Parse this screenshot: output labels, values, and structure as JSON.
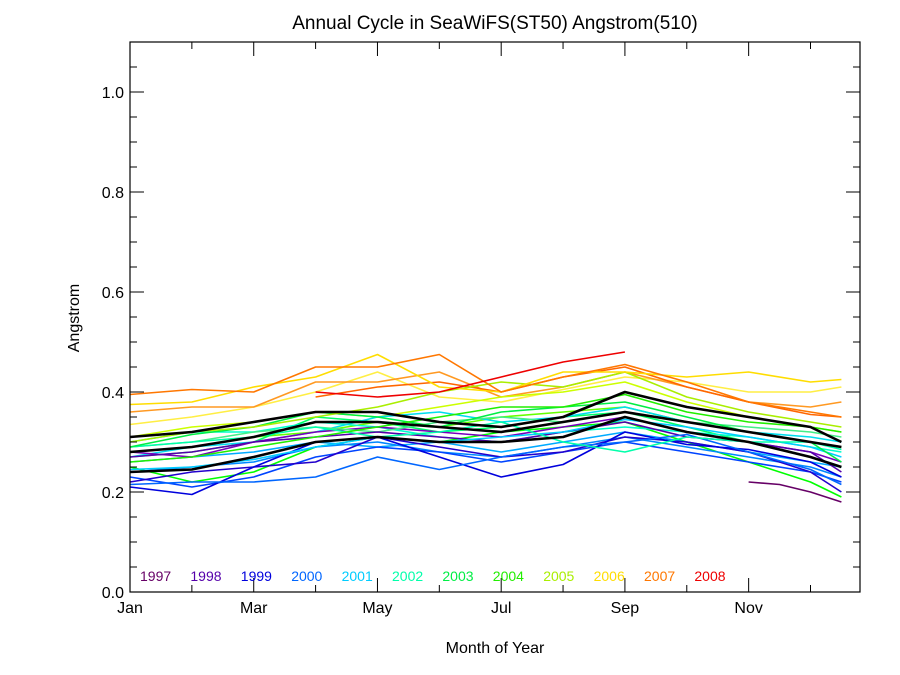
{
  "chart_data": {
    "type": "line",
    "title": "Annual Cycle in SeaWiFS(ST50) Angstrom(510)",
    "xlabel": "Month of Year",
    "ylabel": "Angstrom",
    "xlim": [
      1,
      12.8
    ],
    "ylim": [
      0.0,
      1.1
    ],
    "x_ticks": [
      {
        "value": 1,
        "label": "Jan"
      },
      {
        "value": 3,
        "label": "Mar"
      },
      {
        "value": 5,
        "label": "May"
      },
      {
        "value": 7,
        "label": "Jul"
      },
      {
        "value": 9,
        "label": "Sep"
      },
      {
        "value": 11,
        "label": "Nov"
      }
    ],
    "y_ticks": [
      {
        "value": 0.0,
        "label": "0.0"
      },
      {
        "value": 0.2,
        "label": "0.2"
      },
      {
        "value": 0.4,
        "label": "0.4"
      },
      {
        "value": 0.6,
        "label": "0.6"
      },
      {
        "value": 0.8,
        "label": "0.8"
      },
      {
        "value": 1.0,
        "label": "1.0"
      }
    ],
    "grid": false,
    "legend_position": "bottom-left",
    "series": [
      {
        "name": "1997",
        "color": "#660066",
        "x": [
          11,
          11.5,
          12,
          12.5
        ],
        "values": [
          0.22,
          0.215,
          0.2,
          0.18
        ]
      },
      {
        "name": "1998",
        "color": "#5500aa",
        "x": [
          1,
          2,
          3,
          4,
          5,
          6,
          7,
          8,
          9,
          10,
          11,
          12,
          12.5
        ],
        "values": [
          0.27,
          0.28,
          0.3,
          0.31,
          0.32,
          0.31,
          0.3,
          0.32,
          0.34,
          0.31,
          0.3,
          0.28,
          0.24
        ]
      },
      {
        "name": "1999",
        "color": "#0000dd",
        "x": [
          1,
          2,
          3,
          4,
          5,
          6,
          7,
          8,
          9,
          10,
          11,
          12,
          12.5
        ],
        "values": [
          0.21,
          0.195,
          0.25,
          0.3,
          0.31,
          0.27,
          0.23,
          0.255,
          0.32,
          0.295,
          0.285,
          0.26,
          0.23
        ]
      },
      {
        "name": "2000",
        "color": "#0066ff",
        "x": [
          1,
          2,
          3,
          4,
          5,
          6,
          7,
          8,
          9,
          10,
          11,
          12,
          12.5
        ],
        "values": [
          0.215,
          0.22,
          0.22,
          0.23,
          0.27,
          0.245,
          0.27,
          0.29,
          0.3,
          0.315,
          0.28,
          0.245,
          0.215
        ]
      },
      {
        "name": "2001",
        "color": "#00ccff",
        "x": [
          1,
          2,
          3,
          4,
          5,
          6,
          7,
          8,
          9,
          10,
          11,
          12,
          12.5
        ],
        "values": [
          0.245,
          0.25,
          0.265,
          0.29,
          0.31,
          0.3,
          0.31,
          0.32,
          0.345,
          0.33,
          0.31,
          0.29,
          0.27
        ]
      },
      {
        "name": "2002",
        "color": "#00ffaa",
        "x": [
          1,
          2,
          3,
          4,
          5,
          6,
          7,
          8,
          9,
          10,
          11,
          12,
          12.5
        ],
        "values": [
          0.29,
          0.3,
          0.31,
          0.33,
          0.31,
          0.32,
          0.34,
          0.3,
          0.28,
          0.31,
          0.3,
          0.3,
          0.285
        ]
      },
      {
        "name": "2003",
        "color": "#00ee44",
        "x": [
          1,
          2,
          3,
          4,
          5,
          6,
          7,
          8,
          9,
          10,
          11,
          12,
          12.5
        ],
        "values": [
          0.29,
          0.315,
          0.33,
          0.36,
          0.35,
          0.33,
          0.36,
          0.37,
          0.38,
          0.35,
          0.32,
          0.3,
          0.26
        ]
      },
      {
        "name": "2004",
        "color": "#22ee00",
        "x": [
          1,
          2,
          3,
          4,
          5,
          6,
          7,
          8,
          9,
          10,
          11,
          12,
          12.5
        ],
        "values": [
          0.26,
          0.27,
          0.29,
          0.31,
          0.33,
          0.35,
          0.37,
          0.37,
          0.395,
          0.36,
          0.34,
          0.33,
          0.32
        ]
      },
      {
        "name": "2005",
        "color": "#aaee00",
        "x": [
          1,
          2,
          3,
          4,
          5,
          6,
          7,
          8,
          9,
          10,
          11,
          12,
          12.5
        ],
        "values": [
          0.3,
          0.32,
          0.33,
          0.35,
          0.37,
          0.4,
          0.42,
          0.41,
          0.44,
          0.39,
          0.36,
          0.34,
          0.33
        ]
      },
      {
        "name": "2006",
        "color": "#ffdd00",
        "x": [
          1,
          2,
          3,
          4,
          5,
          6,
          7,
          8,
          9,
          10,
          11,
          12,
          12.5
        ],
        "values": [
          0.375,
          0.38,
          0.41,
          0.43,
          0.475,
          0.41,
          0.4,
          0.44,
          0.44,
          0.43,
          0.44,
          0.42,
          0.425
        ]
      },
      {
        "name": "2007",
        "color": "#ff7700",
        "x": [
          1,
          2,
          3,
          4,
          5,
          6,
          7,
          8,
          9,
          10,
          11,
          12,
          12.5
        ],
        "values": [
          0.395,
          0.405,
          0.4,
          0.45,
          0.45,
          0.475,
          0.4,
          0.43,
          0.455,
          0.42,
          0.38,
          0.36,
          0.35
        ]
      },
      {
        "name": "2008",
        "color": "#ee0000",
        "x": [
          4,
          5,
          6,
          7,
          8,
          9
        ],
        "values": [
          0.4,
          0.39,
          0.4,
          0.43,
          0.46,
          0.48
        ]
      }
    ],
    "extra_lines": [
      {
        "color": "#ffee44",
        "x": [
          1,
          2,
          3,
          4,
          5,
          6,
          7,
          8,
          9,
          10,
          11,
          12,
          12.5
        ],
        "values": [
          0.335,
          0.35,
          0.37,
          0.4,
          0.44,
          0.39,
          0.38,
          0.405,
          0.43,
          0.42,
          0.4,
          0.4,
          0.41
        ]
      },
      {
        "color": "#ff9922",
        "x": [
          1,
          2,
          3,
          4,
          5,
          6,
          7,
          8,
          9,
          10,
          11,
          12,
          12.5
        ],
        "values": [
          0.36,
          0.37,
          0.37,
          0.42,
          0.42,
          0.44,
          0.39,
          0.41,
          0.44,
          0.41,
          0.38,
          0.37,
          0.38
        ]
      },
      {
        "color": "#ff6600",
        "x": [
          4,
          5,
          6,
          7,
          8,
          9,
          10,
          11,
          12,
          12.5
        ],
        "values": [
          0.39,
          0.41,
          0.42,
          0.4,
          0.43,
          0.45,
          0.41,
          0.38,
          0.355,
          0.35
        ]
      },
      {
        "color": "#ccff00",
        "x": [
          1,
          2,
          3,
          4,
          5,
          6,
          7,
          8,
          9,
          10,
          11,
          12,
          12.5
        ],
        "values": [
          0.31,
          0.33,
          0.34,
          0.36,
          0.35,
          0.37,
          0.39,
          0.4,
          0.42,
          0.38,
          0.35,
          0.33,
          0.32
        ]
      },
      {
        "color": "#66ff00",
        "x": [
          1,
          2,
          3,
          4,
          5,
          6,
          7,
          8,
          9,
          10,
          11,
          12,
          12.5
        ],
        "values": [
          0.28,
          0.29,
          0.31,
          0.32,
          0.34,
          0.33,
          0.35,
          0.36,
          0.37,
          0.34,
          0.32,
          0.3,
          0.29
        ]
      },
      {
        "color": "#00ff66",
        "x": [
          1,
          2,
          3,
          4,
          5,
          6,
          7,
          8,
          9,
          10,
          11,
          12,
          12.5
        ],
        "values": [
          0.27,
          0.28,
          0.3,
          0.35,
          0.34,
          0.32,
          0.33,
          0.35,
          0.36,
          0.33,
          0.3,
          0.27,
          0.25
        ]
      },
      {
        "color": "#00ff00",
        "x": [
          1,
          2,
          3,
          4,
          5,
          6,
          7,
          8,
          9,
          10,
          11,
          12,
          12.5
        ],
        "values": [
          0.25,
          0.22,
          0.24,
          0.29,
          0.31,
          0.3,
          0.32,
          0.33,
          0.34,
          0.3,
          0.26,
          0.22,
          0.19
        ]
      },
      {
        "color": "#00ffcc",
        "x": [
          1,
          2,
          3,
          4,
          5,
          6,
          7,
          8,
          9,
          10,
          11,
          12,
          12.5
        ],
        "values": [
          0.3,
          0.32,
          0.32,
          0.34,
          0.33,
          0.31,
          0.3,
          0.32,
          0.33,
          0.32,
          0.31,
          0.29,
          0.28
        ]
      },
      {
        "color": "#00ddee",
        "x": [
          1,
          2,
          3,
          4,
          5,
          6,
          7,
          8,
          9,
          10,
          11,
          12,
          12.5
        ],
        "values": [
          0.27,
          0.29,
          0.3,
          0.32,
          0.35,
          0.36,
          0.34,
          0.35,
          0.37,
          0.34,
          0.32,
          0.31,
          0.3
        ]
      },
      {
        "color": "#00aaff",
        "x": [
          1,
          2,
          3,
          4,
          5,
          6,
          7,
          8,
          9,
          10,
          11,
          12,
          12.5
        ],
        "values": [
          0.26,
          0.27,
          0.28,
          0.3,
          0.29,
          0.3,
          0.28,
          0.3,
          0.32,
          0.3,
          0.28,
          0.26,
          0.25
        ]
      },
      {
        "color": "#0088ff",
        "x": [
          1,
          2,
          3,
          4,
          5,
          6,
          7,
          8,
          9,
          10,
          11,
          12,
          12.5
        ],
        "values": [
          0.24,
          0.25,
          0.26,
          0.29,
          0.3,
          0.28,
          0.27,
          0.29,
          0.31,
          0.29,
          0.27,
          0.25,
          0.23
        ]
      },
      {
        "color": "#0044ff",
        "x": [
          1,
          2,
          3,
          4,
          5,
          6,
          7,
          8,
          9,
          10,
          11,
          12,
          12.5
        ],
        "values": [
          0.23,
          0.21,
          0.23,
          0.27,
          0.29,
          0.28,
          0.26,
          0.28,
          0.3,
          0.28,
          0.26,
          0.24,
          0.22
        ]
      },
      {
        "color": "#2200cc",
        "x": [
          1,
          2,
          3,
          4,
          5,
          6,
          7,
          8,
          9,
          10,
          11,
          12,
          12.5
        ],
        "values": [
          0.22,
          0.24,
          0.25,
          0.26,
          0.31,
          0.29,
          0.27,
          0.28,
          0.31,
          0.3,
          0.28,
          0.24,
          0.2
        ]
      },
      {
        "color": "#7700bb",
        "x": [
          1,
          2,
          3,
          4,
          5,
          6,
          7,
          8,
          9,
          10,
          11,
          12,
          12.5
        ],
        "values": [
          0.28,
          0.27,
          0.3,
          0.32,
          0.33,
          0.32,
          0.31,
          0.33,
          0.35,
          0.32,
          0.3,
          0.28,
          0.26
        ]
      },
      {
        "color": "#44ee88",
        "x": [
          1,
          2,
          3,
          4,
          5,
          6,
          7,
          8,
          9,
          10,
          11,
          12,
          12.5
        ],
        "values": [
          0.29,
          0.3,
          0.32,
          0.33,
          0.32,
          0.34,
          0.35,
          0.34,
          0.36,
          0.34,
          0.33,
          0.32,
          0.31
        ]
      }
    ],
    "mean_lines": [
      {
        "color": "#000000",
        "x": [
          1,
          2,
          3,
          4,
          5,
          6,
          7,
          8,
          9,
          10,
          11,
          12,
          12.5
        ],
        "values": [
          0.31,
          0.32,
          0.34,
          0.36,
          0.36,
          0.34,
          0.33,
          0.35,
          0.4,
          0.37,
          0.35,
          0.33,
          0.3
        ]
      },
      {
        "color": "#000000",
        "x": [
          1,
          2,
          3,
          4,
          5,
          6,
          7,
          8,
          9,
          10,
          11,
          12,
          12.5
        ],
        "values": [
          0.28,
          0.29,
          0.31,
          0.34,
          0.34,
          0.33,
          0.32,
          0.34,
          0.36,
          0.34,
          0.32,
          0.3,
          0.29
        ]
      },
      {
        "color": "#000000",
        "x": [
          1,
          2,
          3,
          4,
          5,
          6,
          7,
          8,
          9,
          10,
          11,
          12,
          12.5
        ],
        "values": [
          0.24,
          0.245,
          0.27,
          0.3,
          0.31,
          0.3,
          0.3,
          0.31,
          0.35,
          0.32,
          0.3,
          0.27,
          0.25
        ]
      }
    ]
  }
}
